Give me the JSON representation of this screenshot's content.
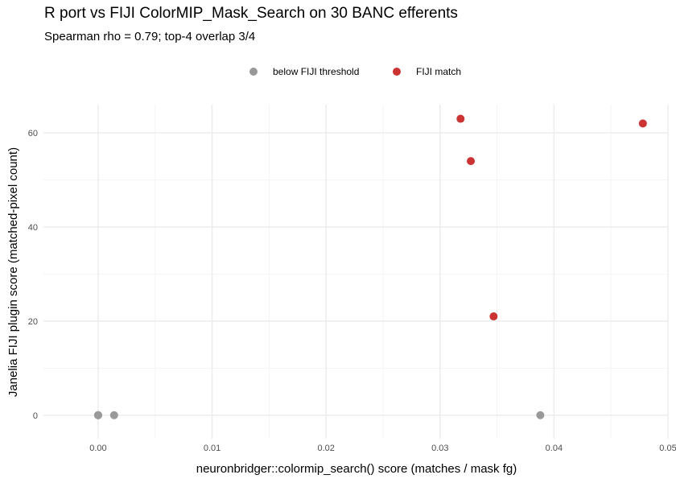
{
  "chart_data": {
    "type": "scatter",
    "title": "R port vs FIJI ColorMIP_Mask_Search on 30 BANC efferents",
    "subtitle": "Spearman rho = 0.79; top-4 overlap 3/4",
    "xlabel": "neuronbridger::colormip_search() score (matches / mask fg)",
    "ylabel": "Janelia FIJI plugin score (matched-pixel count)",
    "xlim": [
      -0.0048,
      0.05
    ],
    "ylim": [
      -5,
      66
    ],
    "x_ticks": [
      0.0,
      0.01,
      0.02,
      0.03,
      0.04,
      0.05
    ],
    "x_tick_labels": [
      "0.00",
      "0.01",
      "0.02",
      "0.03",
      "0.04",
      "0.05"
    ],
    "y_ticks": [
      0,
      20,
      40,
      60
    ],
    "y_tick_labels": [
      "0",
      "20",
      "40",
      "60"
    ],
    "grid": true,
    "legend_position": "top",
    "series": [
      {
        "name": "below FIJI threshold",
        "color": "#999999",
        "points": [
          [
            0.0,
            0
          ],
          [
            0.0,
            0
          ],
          [
            0.0,
            0
          ],
          [
            0.0014,
            0
          ],
          [
            0.0388,
            0
          ]
        ]
      },
      {
        "name": "FIJI match",
        "color": "#cc3333",
        "points": [
          [
            0.0318,
            63
          ],
          [
            0.0327,
            54
          ],
          [
            0.0347,
            21
          ],
          [
            0.0478,
            62
          ]
        ]
      }
    ]
  }
}
